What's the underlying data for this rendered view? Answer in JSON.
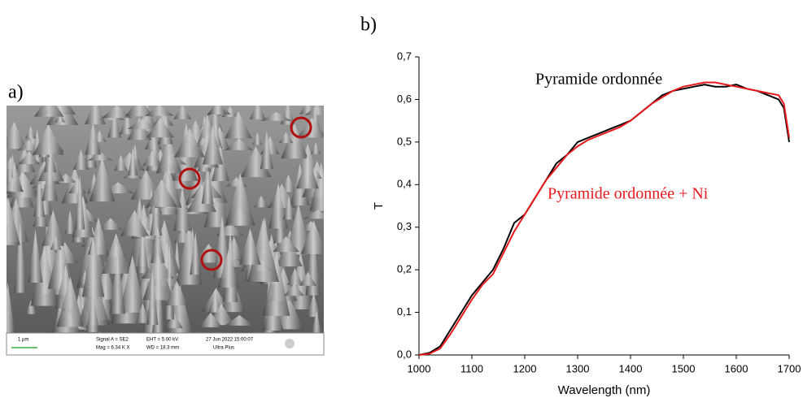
{
  "panel_labels": [
    "a)",
    "b)"
  ],
  "sem_image": {
    "scale_bar": "1 µm",
    "info": [
      "Signal A = SE2",
      "Mag = 6.34 K X",
      "EHT = 5.00 kV",
      "WD = 18.3 mm",
      "27 Jun 2022 15:00:07",
      "Ultra Plus"
    ]
  },
  "chart_data": {
    "type": "line",
    "x": [
      1000,
      1020,
      1040,
      1060,
      1080,
      1100,
      1120,
      1140,
      1160,
      1180,
      1200,
      1220,
      1240,
      1260,
      1280,
      1300,
      1320,
      1340,
      1360,
      1380,
      1400,
      1420,
      1440,
      1460,
      1480,
      1500,
      1520,
      1540,
      1560,
      1580,
      1600,
      1620,
      1640,
      1660,
      1680,
      1690,
      1700
    ],
    "series": [
      {
        "name": "Pyramide ordonnée",
        "color": "#000000",
        "values": [
          0,
          0.005,
          0.02,
          0.06,
          0.1,
          0.14,
          0.17,
          0.2,
          0.25,
          0.31,
          0.33,
          0.37,
          0.41,
          0.45,
          0.47,
          0.5,
          0.51,
          0.52,
          0.53,
          0.54,
          0.55,
          0.57,
          0.59,
          0.61,
          0.62,
          0.625,
          0.63,
          0.635,
          0.63,
          0.63,
          0.635,
          0.625,
          0.62,
          0.61,
          0.6,
          0.58,
          0.5
        ]
      },
      {
        "name": "Pyramide ordonnée + Ni",
        "color": "#e8191c",
        "values": [
          0,
          0.003,
          0.015,
          0.05,
          0.09,
          0.13,
          0.165,
          0.19,
          0.24,
          0.29,
          0.33,
          0.37,
          0.41,
          0.44,
          0.47,
          0.49,
          0.505,
          0.515,
          0.525,
          0.535,
          0.55,
          0.57,
          0.59,
          0.605,
          0.62,
          0.63,
          0.635,
          0.64,
          0.64,
          0.635,
          0.63,
          0.625,
          0.62,
          0.615,
          0.61,
          0.59,
          0.51
        ]
      }
    ],
    "xlabel": "Wavelength (nm)",
    "ylabel": "T",
    "xlim": [
      1000,
      1700
    ],
    "xticks": [
      1000,
      1100,
      1200,
      1300,
      1400,
      1500,
      1600,
      1700
    ],
    "ylim": [
      0,
      0.7
    ],
    "yticks": [
      {
        "value": 0,
        "label": "0,0"
      },
      {
        "value": 0.1,
        "label": "0,1"
      },
      {
        "value": 0.2,
        "label": "0,2"
      },
      {
        "value": 0.3,
        "label": "0,3"
      },
      {
        "value": 0.4,
        "label": "0,4"
      },
      {
        "value": 0.5,
        "label": "0,5"
      },
      {
        "value": 0.6,
        "label": "0,6"
      },
      {
        "value": 0.7,
        "label": "0,7"
      }
    ],
    "grid": false
  }
}
